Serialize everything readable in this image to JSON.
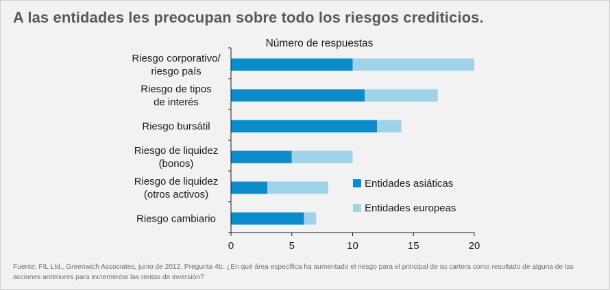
{
  "title": "A las entidades les preocupan sobre todo los riesgos crediticios.",
  "source": "Fuente: FIL Ltd., Greenwich Associates, junio de 2012. Pregunta 4b: ¿En qué área específica ha aumentado el riesgo para el principal de su cartera como resultado de alguna de las acciones anteriores para incrementar las rentas de inversión?",
  "colors": {
    "asian": "#0d8ccb",
    "european": "#9fd3ea",
    "title": "#58595b",
    "text": "#1a1a1a"
  },
  "chart_data": {
    "type": "bar",
    "orientation": "horizontal",
    "stacked": true,
    "title": "Número de respuestas",
    "categories": [
      [
        "Riesgo corporativo/",
        "riesgo país"
      ],
      [
        "Riesgo de tipos",
        "de interés"
      ],
      [
        "Riesgo bursátil"
      ],
      [
        "Riesgo de liquidez",
        "(bonos)"
      ],
      [
        "Riesgo de liquidez",
        "(otros activos)"
      ],
      [
        "Riesgo cambiario"
      ]
    ],
    "series": [
      {
        "name": "Entidades asiáticas",
        "values": [
          10,
          11,
          12,
          5,
          3,
          6
        ],
        "color": "#0d8ccb"
      },
      {
        "name": "Entidades europeas",
        "values": [
          10,
          6,
          2,
          5,
          5,
          1
        ],
        "color": "#9fd3ea"
      }
    ],
    "xlim": [
      0,
      20
    ],
    "xticks": [
      0,
      5,
      10,
      15,
      20
    ],
    "grid": false,
    "legend_position": "right"
  }
}
